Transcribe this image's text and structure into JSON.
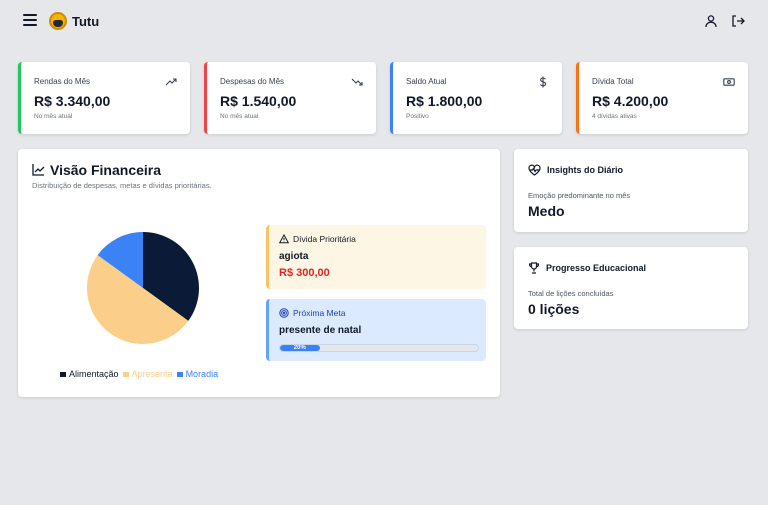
{
  "header": {
    "title": "Tutu"
  },
  "stats": [
    {
      "label": "Rendas do Mês",
      "value": "R$ 3.340,00",
      "sub": "No mês atual",
      "color": "#22c55e",
      "icon": "trending-up-icon"
    },
    {
      "label": "Despesas do Mês",
      "value": "R$ 1.540,00",
      "sub": "No mês atual",
      "color": "#ef4444",
      "icon": "trending-down-icon"
    },
    {
      "label": "Saldo Atual",
      "value": "R$ 1.800,00",
      "sub": "Positivo",
      "color": "#3b82f6",
      "icon": "dollar-icon"
    },
    {
      "label": "Dívida Total",
      "value": "R$ 4.200,00",
      "sub": "4 dívidas ativas",
      "color": "#f97316",
      "icon": "banknote-icon"
    }
  ],
  "financial": {
    "title": "Visão Financeira",
    "subtitle": "Distribuição de despesas, metas e dívidas prioritárias.",
    "priority_debt": {
      "heading": "Dívida Prioritária",
      "name": "agiota",
      "amount": "R$ 300,00"
    },
    "next_goal": {
      "heading": "Próxima Meta",
      "name": "presente de natal",
      "progress_label": "20%",
      "progress": 0.2
    }
  },
  "chart_data": {
    "type": "pie",
    "categories": [
      "Alimentação",
      "Apresenta",
      "Moradia"
    ],
    "values": [
      35,
      50,
      15
    ],
    "colors": [
      "#0b1a36",
      "#fbcf8a",
      "#3b82f6"
    ],
    "legend_colors": [
      "#111827",
      "#fbcf8a",
      "#3b82f6"
    ],
    "legend": "bottom"
  },
  "insights": {
    "title": "Insights do Diário",
    "label": "Emoção predominante no mês",
    "value": "Medo"
  },
  "education": {
    "title": "Progresso Educacional",
    "label": "Total de lições concluídas",
    "value": "0 lições"
  }
}
